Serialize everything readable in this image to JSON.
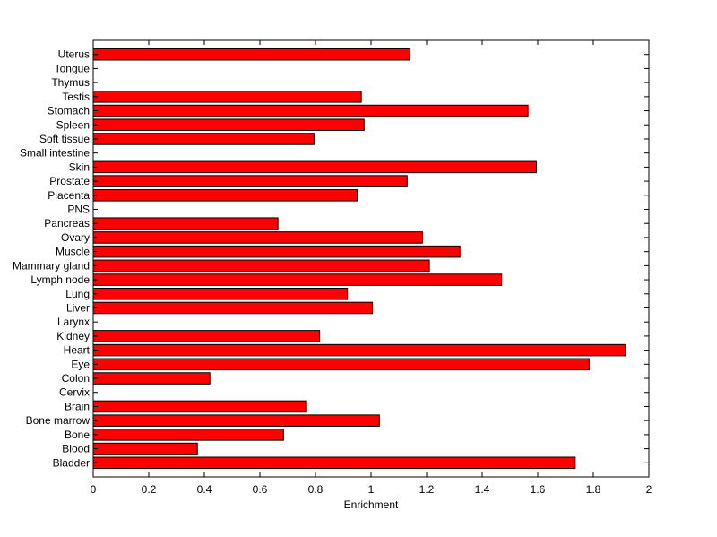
{
  "chart_data": {
    "type": "bar",
    "orientation": "horizontal",
    "title": "",
    "xlabel": "Enrichment",
    "ylabel": "",
    "xlim": [
      0,
      2
    ],
    "xticks": [
      "0",
      "0.2",
      "0.4",
      "0.6",
      "0.8",
      "1",
      "1.2",
      "1.4",
      "1.6",
      "1.8",
      "2"
    ],
    "grid": false,
    "legend": "none",
    "bar_color": "#ff0000",
    "bar_edge_color": "#000000",
    "categories": [
      "Bladder",
      "Blood",
      "Bone",
      "Bone marrow",
      "Brain",
      "Cervix",
      "Colon",
      "Eye",
      "Heart",
      "Kidney",
      "Larynx",
      "Liver",
      "Lung",
      "Lymph node",
      "Mammary gland",
      "Muscle",
      "Ovary",
      "Pancreas",
      "PNS",
      "Placenta",
      "Prostate",
      "Skin",
      "Small intestine",
      "Soft tissue",
      "Spleen",
      "Stomach",
      "Testis",
      "Thymus",
      "Tongue",
      "Uterus"
    ],
    "values": [
      1.735,
      0.375,
      0.685,
      1.03,
      0.765,
      0,
      0.42,
      1.785,
      1.915,
      0.815,
      0,
      1.005,
      0.915,
      1.47,
      1.21,
      1.32,
      1.185,
      0.665,
      0,
      0.95,
      1.13,
      1.595,
      0,
      0.795,
      0.975,
      1.565,
      0.965,
      0,
      0,
      1.14
    ]
  }
}
